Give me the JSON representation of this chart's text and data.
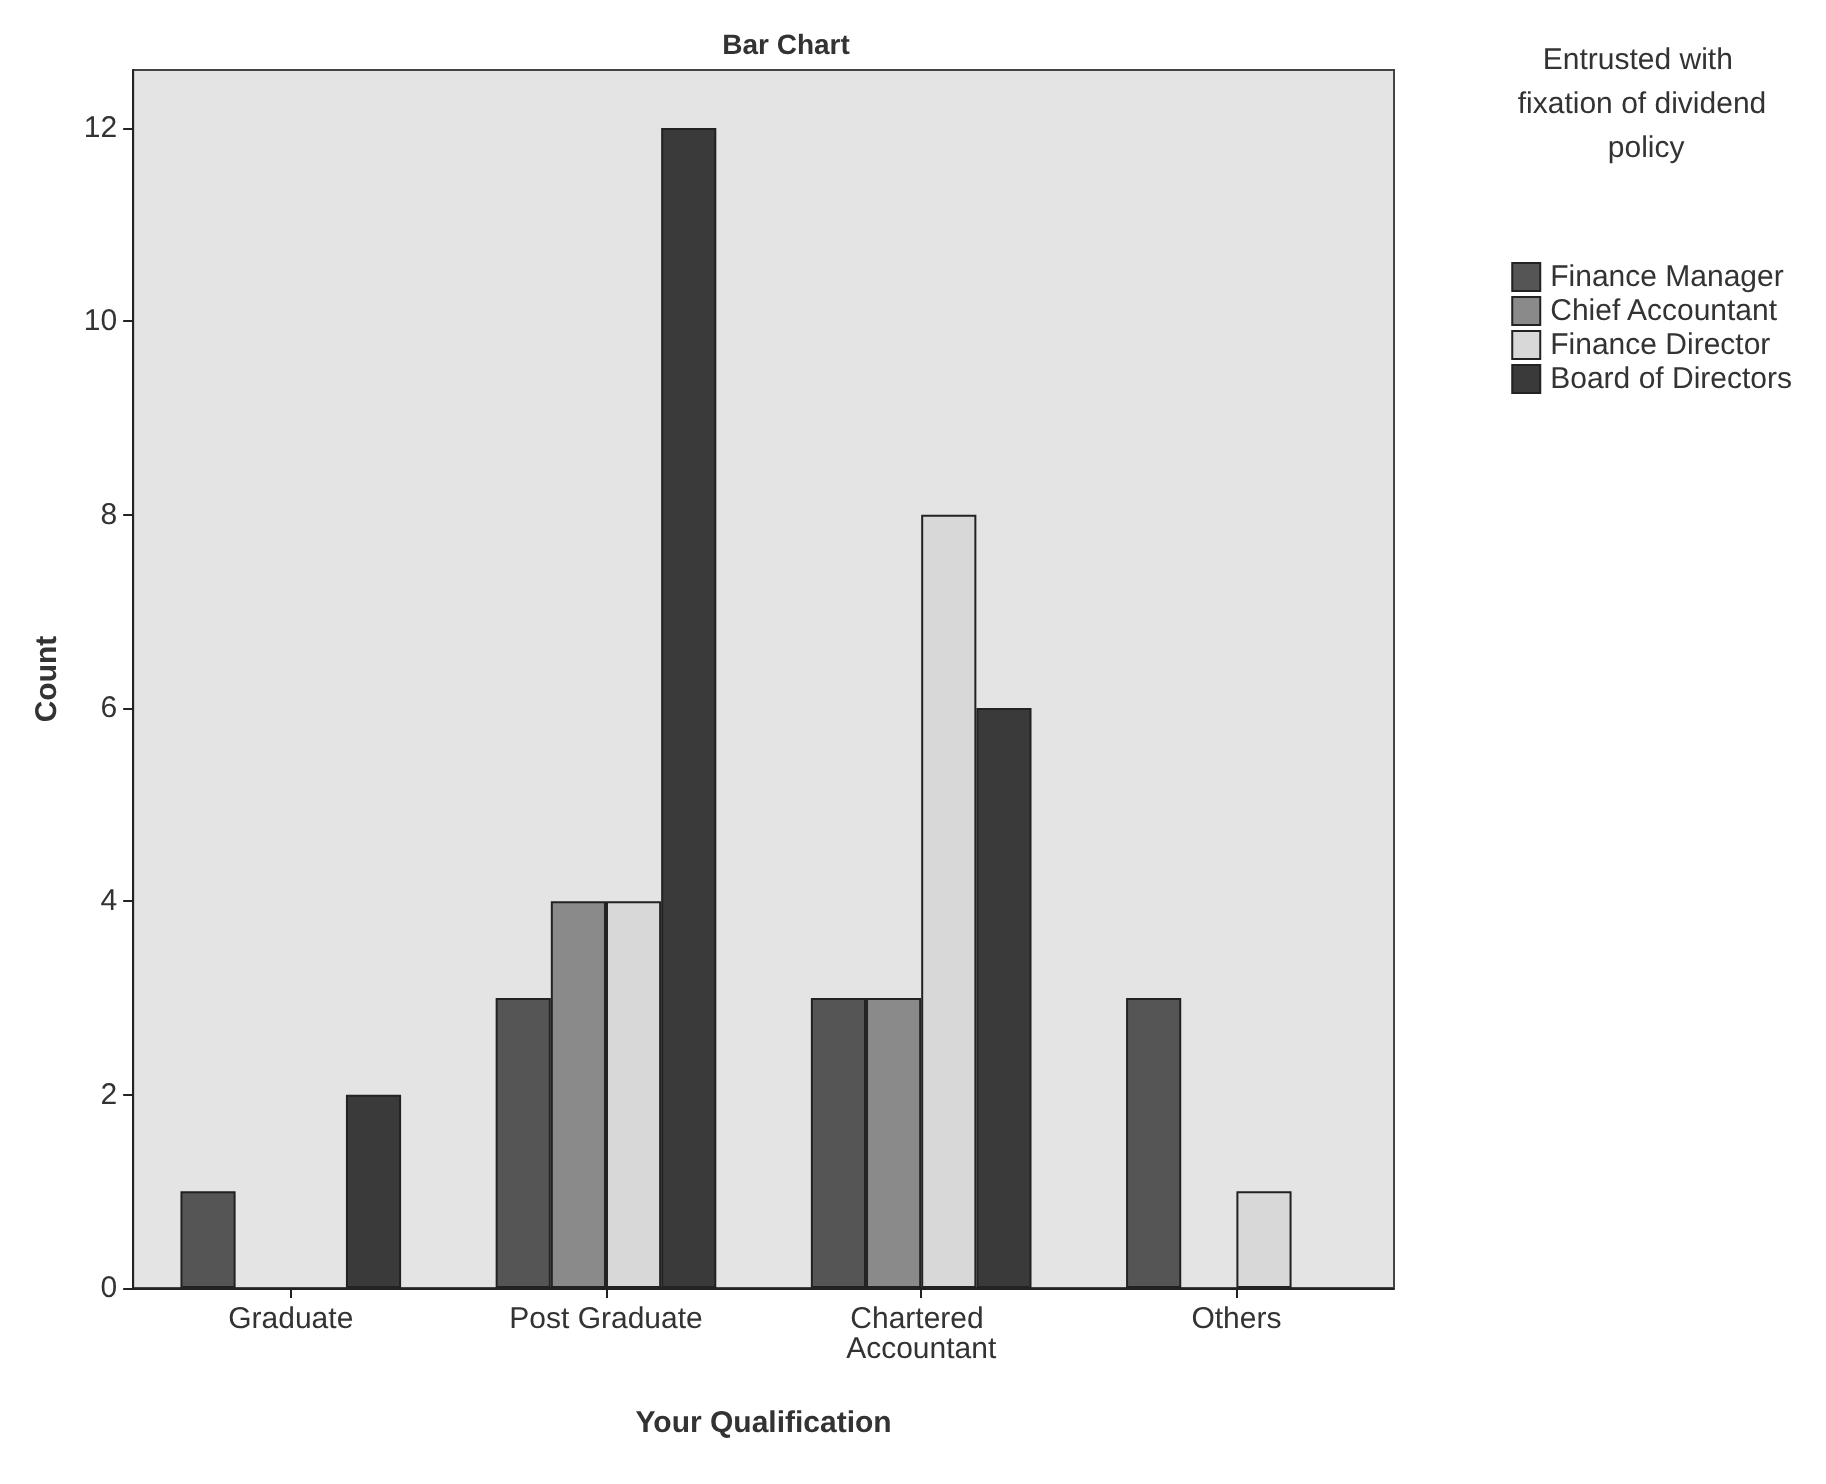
{
  "chart_data": {
    "type": "bar",
    "title": "Bar Chart",
    "xlabel": "Your Qualification",
    "ylabel": "Count",
    "legend_title": "Entrusted with fixation of dividend policy",
    "categories": [
      "Graduate",
      "Post Graduate",
      "Chartered Accountant",
      "Others"
    ],
    "series": [
      {
        "name": "Finance Manager",
        "color": "#555555",
        "values": [
          1,
          3,
          3,
          3
        ]
      },
      {
        "name": "Chief Accountant",
        "color": "#8a8a8a",
        "values": [
          0,
          4,
          3,
          0
        ]
      },
      {
        "name": "Finance Director",
        "color": "#d8d8d8",
        "values": [
          0,
          4,
          8,
          1
        ]
      },
      {
        "name": "Board of Directors",
        "color": "#3a3a3a",
        "values": [
          2,
          12,
          6,
          0
        ]
      }
    ],
    "ylim": [
      0,
      12.6
    ],
    "yticks": [
      0,
      2,
      4,
      6,
      8,
      10,
      12
    ],
    "grid": false,
    "legend": "top right"
  }
}
